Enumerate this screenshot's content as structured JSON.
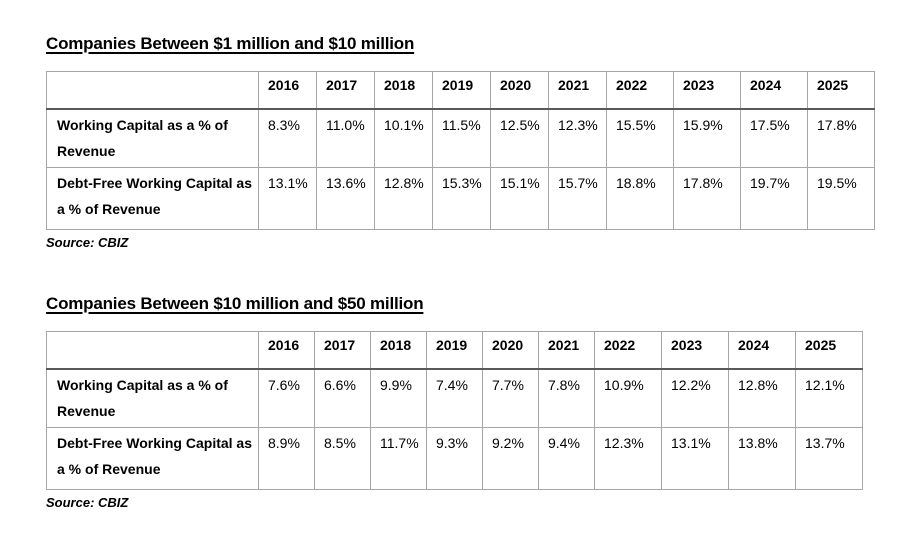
{
  "colors": {
    "background": "#ffffff",
    "text": "#000000",
    "border_light": "#a6a6a6",
    "border_dark": "#595959"
  },
  "sections": [
    {
      "title": "Companies Between $1 million and $10 million",
      "source": "Source: CBIZ",
      "table": {
        "years": [
          "2016",
          "2017",
          "2018",
          "2019",
          "2020",
          "2021",
          "2022",
          "2023",
          "2024",
          "2025"
        ],
        "rows": [
          {
            "label": "Working Capital as a % of Revenue",
            "values": [
              "8.3%",
              "11.0%",
              "10.1%",
              "11.5%",
              "12.5%",
              "12.3%",
              "15.5%",
              "15.9%",
              "17.5%",
              "17.8%"
            ]
          },
          {
            "label": "Debt-Free Working Capital as a % of Revenue",
            "values": [
              "13.1%",
              "13.6%",
              "12.8%",
              "15.3%",
              "15.1%",
              "15.7%",
              "18.8%",
              "17.8%",
              "19.7%",
              "19.5%"
            ]
          }
        ]
      }
    },
    {
      "title": "Companies Between $10 million and $50 million",
      "source": "Source: CBIZ",
      "table": {
        "years": [
          "2016",
          "2017",
          "2018",
          "2019",
          "2020",
          "2021",
          "2022",
          "2023",
          "2024",
          "2025"
        ],
        "rows": [
          {
            "label": "Working Capital as a % of Revenue",
            "values": [
              "7.6%",
              "6.6%",
              "9.9%",
              "7.4%",
              "7.7%",
              "7.8%",
              "10.9%",
              "12.2%",
              "12.8%",
              "12.1%"
            ]
          },
          {
            "label": "Debt-Free Working Capital as a % of Revenue",
            "values": [
              "8.9%",
              "8.5%",
              "11.7%",
              "9.3%",
              "9.2%",
              "9.4%",
              "12.3%",
              "13.1%",
              "13.8%",
              "13.7%"
            ]
          }
        ]
      }
    }
  ]
}
